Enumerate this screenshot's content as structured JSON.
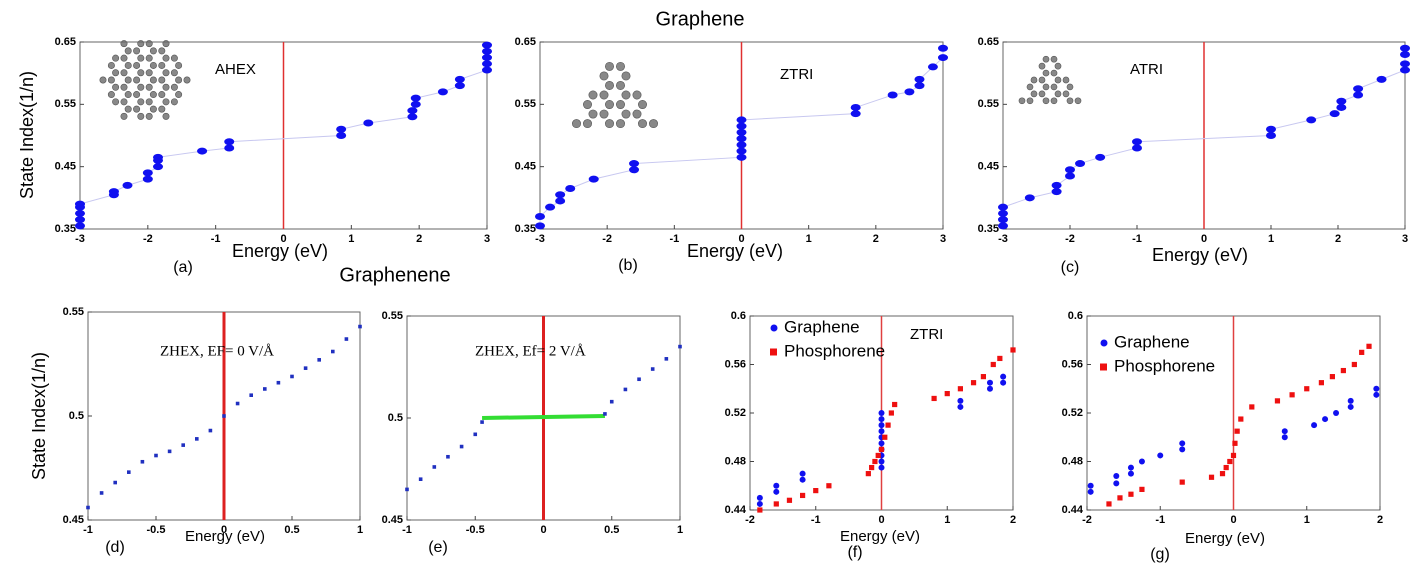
{
  "titles": {
    "top": "Graphene",
    "bottom": "Graphenene"
  },
  "chart_data": [
    {
      "type": "scatter",
      "panel": "(a)",
      "annotation": "AHEX",
      "xlabel": "Energy (eV)",
      "ylabel": "State Index(1/n)",
      "xlim": [
        -3,
        3
      ],
      "ylim": [
        0.35,
        0.65
      ],
      "xticks": [
        -3,
        -2,
        -1,
        0,
        1,
        2,
        3
      ],
      "yticks": [
        0.35,
        0.45,
        0.55,
        0.65
      ],
      "vline": {
        "x": 0,
        "color": "#e03030"
      },
      "marker": "ellipse",
      "line_color": "#c8c8f0",
      "series": [
        {
          "color": "#1010f0",
          "x": [
            -3,
            -3,
            -3,
            -3,
            -3,
            -2.5,
            -2.5,
            -2.3,
            -2,
            -2,
            -1.85,
            -1.85,
            -1.85,
            -1.2,
            -0.8,
            -0.8,
            0.85,
            0.85,
            1.25,
            1.9,
            1.9,
            1.95,
            1.95,
            2.35,
            2.6,
            2.6,
            3,
            3,
            3,
            3,
            3
          ],
          "values": [
            0.355,
            0.365,
            0.375,
            0.385,
            0.39,
            0.405,
            0.41,
            0.42,
            0.43,
            0.44,
            0.45,
            0.46,
            0.465,
            0.475,
            0.48,
            0.49,
            0.5,
            0.51,
            0.52,
            0.53,
            0.54,
            0.55,
            0.56,
            0.57,
            0.58,
            0.59,
            0.605,
            0.615,
            0.625,
            0.635,
            0.645
          ]
        }
      ]
    },
    {
      "type": "scatter",
      "panel": "(b)",
      "annotation": "ZTRI",
      "xlabel": "Energy (eV)",
      "xlim": [
        -3,
        3
      ],
      "ylim": [
        0.35,
        0.65
      ],
      "xticks": [
        -3,
        -2,
        -1,
        0,
        1,
        2,
        3
      ],
      "yticks": [
        0.35,
        0.45,
        0.55,
        0.65
      ],
      "vline": {
        "x": 0,
        "color": "#e03030"
      },
      "marker": "ellipse",
      "line_color": "#c8c8f0",
      "series": [
        {
          "color": "#1010f0",
          "x": [
            -3,
            -3,
            -2.85,
            -2.7,
            -2.7,
            -2.55,
            -2.2,
            -1.6,
            -1.6,
            0,
            0,
            0,
            0,
            0,
            0,
            0,
            1.7,
            1.7,
            2.25,
            2.5,
            2.65,
            2.65,
            2.85,
            3,
            3
          ],
          "values": [
            0.355,
            0.37,
            0.385,
            0.395,
            0.405,
            0.415,
            0.43,
            0.445,
            0.455,
            0.465,
            0.475,
            0.485,
            0.495,
            0.505,
            0.515,
            0.525,
            0.535,
            0.545,
            0.565,
            0.57,
            0.58,
            0.59,
            0.61,
            0.625,
            0.64
          ]
        }
      ]
    },
    {
      "type": "scatter",
      "panel": "(c)",
      "annotation": "ATRI",
      "xlabel": "Energy (eV)",
      "xlim": [
        -3,
        3
      ],
      "ylim": [
        0.35,
        0.65
      ],
      "xticks": [
        -3,
        -2,
        -1,
        0,
        1,
        2,
        3
      ],
      "yticks": [
        0.35,
        0.45,
        0.55,
        0.65
      ],
      "vline": {
        "x": 0,
        "color": "#e03030"
      },
      "marker": "ellipse",
      "line_color": "#c8c8f0",
      "series": [
        {
          "color": "#1010f0",
          "x": [
            -3,
            -3,
            -3,
            -3,
            -2.6,
            -2.2,
            -2.2,
            -2,
            -2,
            -1.85,
            -1.55,
            -1,
            -1,
            1,
            1,
            1.6,
            1.95,
            2.05,
            2.05,
            2.3,
            2.3,
            2.65,
            3,
            3,
            3,
            3
          ],
          "values": [
            0.355,
            0.365,
            0.375,
            0.385,
            0.4,
            0.41,
            0.42,
            0.435,
            0.445,
            0.455,
            0.465,
            0.48,
            0.49,
            0.5,
            0.51,
            0.525,
            0.535,
            0.545,
            0.555,
            0.565,
            0.575,
            0.59,
            0.605,
            0.615,
            0.63,
            0.64
          ]
        }
      ]
    },
    {
      "type": "scatter",
      "panel": "(d)",
      "annotation": "ZHEX, EF= 0 V/Å",
      "xlabel": "Energy (eV)",
      "ylabel": "State Index(1/n)",
      "xlim": [
        -1,
        1
      ],
      "ylim": [
        0.45,
        0.55
      ],
      "xticks": [
        -1,
        -0.5,
        0,
        0.5,
        1
      ],
      "yticks": [
        0.45,
        0.5,
        0.55
      ],
      "vline": {
        "x": 0,
        "color": "#dd2020"
      },
      "marker": "square",
      "series": [
        {
          "color": "#2030c0",
          "x": [
            -1,
            -0.9,
            -0.8,
            -0.7,
            -0.6,
            -0.5,
            -0.4,
            -0.3,
            -0.2,
            -0.1,
            0,
            0.1,
            0.2,
            0.3,
            0.4,
            0.5,
            0.6,
            0.7,
            0.8,
            0.9,
            1
          ],
          "values": [
            0.456,
            0.463,
            0.468,
            0.473,
            0.478,
            0.481,
            0.483,
            0.486,
            0.489,
            0.493,
            0.5,
            0.506,
            0.51,
            0.513,
            0.516,
            0.519,
            0.523,
            0.527,
            0.531,
            0.537,
            0.543
          ]
        }
      ]
    },
    {
      "type": "scatter",
      "panel": "(e)",
      "annotation": "ZHEX, Ef= 2 V/Å",
      "xlim": [
        -1,
        1
      ],
      "ylim": [
        0.45,
        0.55
      ],
      "xticks": [
        -1,
        -0.5,
        0,
        0.5,
        1
      ],
      "yticks": [
        0.45,
        0.5,
        0.55
      ],
      "vline": {
        "x": 0,
        "color": "#dd2020"
      },
      "marker": "square",
      "series": [
        {
          "color": "#2030c0",
          "x": [
            -1,
            -0.9,
            -0.8,
            -0.7,
            -0.6,
            -0.5,
            -0.45
          ],
          "values": [
            0.465,
            0.47,
            0.476,
            0.481,
            0.486,
            0.492,
            0.498
          ]
        },
        {
          "color": "#33dd33",
          "mode": "line",
          "x": [
            -0.45,
            0.45
          ],
          "values": [
            0.5,
            0.501
          ]
        },
        {
          "color": "#2030c0",
          "x": [
            0.45,
            0.5,
            0.6,
            0.7,
            0.8,
            0.9,
            1
          ],
          "values": [
            0.502,
            0.508,
            0.514,
            0.519,
            0.524,
            0.529,
            0.535
          ]
        }
      ]
    },
    {
      "type": "scatter",
      "panel": "(f)",
      "annotation": "ZTRI",
      "xlabel": "Energy (eV)",
      "xlim": [
        -2,
        2
      ],
      "ylim": [
        0.44,
        0.6
      ],
      "xticks": [
        -2,
        -1,
        0,
        1,
        2
      ],
      "yticks": [
        0.44,
        0.48,
        0.52,
        0.56,
        0.6
      ],
      "vline": {
        "x": 0,
        "color": "#e04040"
      },
      "legend": "upper left",
      "series": [
        {
          "name": "Graphene",
          "color": "#1010f0",
          "marker": "circle",
          "x": [
            -1.85,
            -1.85,
            -1.6,
            -1.6,
            -1.2,
            -1.2,
            0,
            0,
            0,
            0,
            0,
            0,
            0,
            0,
            0,
            0,
            1.2,
            1.2,
            1.65,
            1.65,
            1.85,
            1.85
          ],
          "values": [
            0.445,
            0.45,
            0.455,
            0.46,
            0.465,
            0.47,
            0.475,
            0.48,
            0.485,
            0.49,
            0.495,
            0.5,
            0.505,
            0.51,
            0.515,
            0.52,
            0.525,
            0.53,
            0.54,
            0.545,
            0.545,
            0.55
          ]
        },
        {
          "name": "Phosphorene",
          "color": "#ee1010",
          "marker": "square",
          "x": [
            -1.85,
            -1.6,
            -1.4,
            -1.2,
            -1,
            -0.8,
            -0.2,
            -0.15,
            -0.1,
            -0.05,
            0,
            0.05,
            0.1,
            0.15,
            0.2,
            0.8,
            1,
            1.2,
            1.4,
            1.55,
            1.7,
            1.8,
            2
          ],
          "values": [
            0.44,
            0.445,
            0.448,
            0.452,
            0.456,
            0.46,
            0.47,
            0.475,
            0.48,
            0.485,
            0.49,
            0.5,
            0.51,
            0.52,
            0.527,
            0.532,
            0.536,
            0.54,
            0.545,
            0.55,
            0.56,
            0.565,
            0.572
          ]
        }
      ]
    },
    {
      "type": "scatter",
      "panel": "(g)",
      "xlabel": "Energy (eV)",
      "xlim": [
        -2,
        2
      ],
      "ylim": [
        0.44,
        0.6
      ],
      "xticks": [
        -2,
        -1,
        0,
        1,
        2
      ],
      "yticks": [
        0.44,
        0.48,
        0.52,
        0.56,
        0.6
      ],
      "vline": {
        "x": 0,
        "color": "#e04040"
      },
      "legend": "upper left",
      "series": [
        {
          "name": "Graphene",
          "color": "#1010f0",
          "marker": "circle",
          "x": [
            -1.95,
            -1.95,
            -1.6,
            -1.6,
            -1.4,
            -1.4,
            -1.25,
            -1,
            -0.7,
            -0.7,
            0.7,
            0.7,
            1.1,
            1.25,
            1.4,
            1.6,
            1.6,
            1.95,
            1.95
          ],
          "values": [
            0.455,
            0.46,
            0.462,
            0.468,
            0.47,
            0.475,
            0.48,
            0.485,
            0.49,
            0.495,
            0.5,
            0.505,
            0.51,
            0.515,
            0.52,
            0.525,
            0.53,
            0.535,
            0.54
          ]
        },
        {
          "name": "Phosphorene",
          "color": "#ee1010",
          "marker": "square",
          "x": [
            -1.7,
            -1.55,
            -1.4,
            -1.25,
            -0.7,
            -0.3,
            -0.15,
            -0.1,
            -0.05,
            0,
            0.02,
            0.05,
            0.1,
            0.25,
            0.6,
            0.8,
            1,
            1.2,
            1.35,
            1.5,
            1.65,
            1.75,
            1.85
          ],
          "values": [
            0.445,
            0.45,
            0.453,
            0.457,
            0.463,
            0.467,
            0.47,
            0.475,
            0.48,
            0.485,
            0.495,
            0.505,
            0.515,
            0.525,
            0.53,
            0.535,
            0.54,
            0.545,
            0.55,
            0.555,
            0.56,
            0.57,
            0.575
          ]
        }
      ]
    }
  ]
}
